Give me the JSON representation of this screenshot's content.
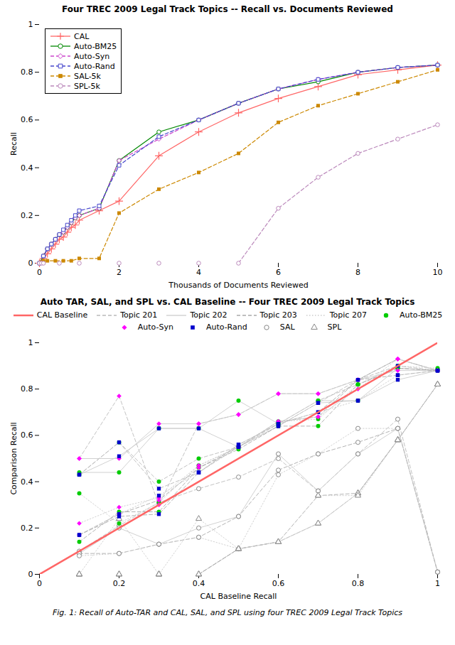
{
  "chart_data": [
    {
      "type": "line",
      "title": "Four TREC 2009 Legal Track Topics -- Recall vs. Documents Reviewed",
      "xlabel": "Thousands of Documents Reviewed",
      "ylabel": "Recall",
      "xlim": [
        0,
        10
      ],
      "xticks": [
        0,
        2,
        4,
        6,
        8,
        10
      ],
      "ylim": [
        0,
        1
      ],
      "yticks": [
        0,
        0.2,
        0.4,
        0.6,
        0.8,
        1
      ],
      "grid": false,
      "legend": "upper left",
      "series": [
        {
          "name": "CAL",
          "color": "#ff6666",
          "line_style": "solid",
          "marker": "plus",
          "x": [
            0.0,
            0.1,
            0.2,
            0.3,
            0.4,
            0.5,
            0.6,
            0.7,
            0.8,
            0.9,
            1.0,
            1.5,
            2.0,
            3.0,
            4.0,
            5.0,
            6.0,
            7.0,
            8.0,
            9.0,
            10.0
          ],
          "values": [
            0.0,
            0.02,
            0.04,
            0.06,
            0.08,
            0.1,
            0.11,
            0.13,
            0.15,
            0.16,
            0.18,
            0.22,
            0.26,
            0.45,
            0.55,
            0.63,
            0.69,
            0.74,
            0.79,
            0.81,
            0.83
          ]
        },
        {
          "name": "Auto-BM25",
          "color": "#008800",
          "line_style": "solid",
          "marker": "open circle",
          "x": [
            0.0,
            0.1,
            0.2,
            0.3,
            0.4,
            0.5,
            0.6,
            0.7,
            0.8,
            0.9,
            1.0,
            1.5,
            2.0,
            3.0,
            4.0,
            5.0,
            6.0,
            7.0,
            8.0,
            9.0,
            10.0
          ],
          "values": [
            0.0,
            0.03,
            0.06,
            0.08,
            0.1,
            0.12,
            0.13,
            0.15,
            0.17,
            0.19,
            0.2,
            0.23,
            0.43,
            0.55,
            0.6,
            0.67,
            0.73,
            0.76,
            0.8,
            0.82,
            0.83
          ]
        },
        {
          "name": "Auto-Syn",
          "color": "#cc44cc",
          "line_style": "dashed",
          "marker": "open diamond",
          "x": [
            0.0,
            0.1,
            0.2,
            0.3,
            0.4,
            0.5,
            0.6,
            0.7,
            0.8,
            0.9,
            1.0,
            1.5,
            2.0,
            3.0,
            4.0,
            5.0,
            6.0,
            7.0,
            8.0,
            9.0,
            10.0
          ],
          "values": [
            0.0,
            0.03,
            0.06,
            0.08,
            0.1,
            0.12,
            0.13,
            0.15,
            0.17,
            0.19,
            0.2,
            0.23,
            0.43,
            0.52,
            0.6,
            0.67,
            0.73,
            0.77,
            0.8,
            0.82,
            0.83
          ]
        },
        {
          "name": "Auto-Rand",
          "color": "#4444cc",
          "line_style": "dashed",
          "marker": "open square",
          "x": [
            0.0,
            0.1,
            0.2,
            0.3,
            0.4,
            0.5,
            0.6,
            0.7,
            0.8,
            0.9,
            1.0,
            1.5,
            2.0,
            3.0,
            4.0,
            5.0,
            6.0,
            7.0,
            8.0,
            9.0,
            10.0
          ],
          "values": [
            0.0,
            0.03,
            0.06,
            0.08,
            0.1,
            0.12,
            0.14,
            0.16,
            0.18,
            0.2,
            0.22,
            0.24,
            0.41,
            0.53,
            0.6,
            0.67,
            0.73,
            0.77,
            0.8,
            0.82,
            0.83
          ]
        },
        {
          "name": "SAL-5k",
          "color": "#cc8800",
          "line_style": "dashed",
          "marker": "square",
          "x": [
            0.0,
            0.05,
            0.1,
            0.2,
            0.4,
            0.6,
            0.8,
            1.0,
            1.5,
            2.0,
            3.0,
            4.0,
            5.0,
            6.0,
            7.0,
            8.0,
            9.0,
            10.0
          ],
          "values": [
            0.0,
            0.005,
            0.01,
            0.01,
            0.01,
            0.01,
            0.01,
            0.02,
            0.02,
            0.21,
            0.31,
            0.38,
            0.46,
            0.59,
            0.66,
            0.71,
            0.76,
            0.81
          ]
        },
        {
          "name": "SPL-5k",
          "color": "#bb88bb",
          "line_style": "dashed",
          "marker": "open circle",
          "x": [
            0.0,
            0.05,
            0.1,
            0.5,
            1.0,
            2.0,
            3.0,
            4.0,
            5.0,
            6.0,
            7.0,
            8.0,
            9.0,
            10.0
          ],
          "values": [
            0.0,
            0.0,
            0.0,
            0.0,
            0.0,
            0.0,
            0.0,
            0.0,
            0.0,
            0.23,
            0.36,
            0.46,
            0.52,
            0.58
          ]
        }
      ]
    },
    {
      "type": "scatter",
      "title": "Auto TAR, SAL, and SPL vs. CAL Baseline -- Four TREC 2009 Legal Track Topics",
      "xlabel": "CAL Baseline Recall",
      "ylabel": "Comparison Recall",
      "caption": "Fig. 1: Recall of Auto-TAR and CAL, SAL, and SPL using four TREC 2009 Legal Track Topics",
      "xlim": [
        0,
        1
      ],
      "xticks": [
        0,
        0.2,
        0.4,
        0.6,
        0.8,
        1
      ],
      "ylim": [
        0,
        1
      ],
      "yticks": [
        0,
        0.2,
        0.4,
        0.6,
        0.8,
        1
      ],
      "grid": false,
      "legend": "top",
      "x": [
        0.1,
        0.2,
        0.3,
        0.4,
        0.5,
        0.6,
        0.7,
        0.8,
        0.9,
        1.0
      ],
      "topics": [
        {
          "name": "Topic 201",
          "color": "#bbbbbb",
          "line_style": "dashed"
        },
        {
          "name": "Topic 202",
          "color": "#cccccc",
          "line_style": "solid"
        },
        {
          "name": "Topic 203",
          "color": "#aaaaaa",
          "line_style": "dashed"
        },
        {
          "name": "Topic 207",
          "color": "#cccccc",
          "line_style": "dotted"
        }
      ],
      "series": [
        {
          "name": "CAL Baseline",
          "type": "line",
          "color": "#ff6666",
          "line_style": "solid",
          "x": [
            0,
            1
          ],
          "values": [
            0,
            1
          ]
        },
        {
          "name": "Auto-BM25",
          "type": "scatter",
          "color": "#00cc00",
          "marker": "circle",
          "values": [
            [
              0.43,
              0.57,
              0.4,
              0.5,
              0.55,
              0.65,
              0.75,
              0.82,
              0.89,
              0.88
            ],
            [
              0.44,
              0.44,
              0.63,
              0.63,
              0.75,
              0.65,
              0.75,
              0.75,
              0.89,
              0.88
            ],
            [
              0.14,
              0.27,
              0.27,
              0.46,
              0.54,
              0.64,
              0.64,
              0.82,
              0.89,
              0.88
            ],
            [
              0.35,
              0.22,
              0.31,
              0.47,
              0.55,
              0.66,
              0.67,
              0.82,
              0.9,
              0.89
            ]
          ]
        },
        {
          "name": "Auto-Syn",
          "type": "scatter",
          "color": "#ff00ff",
          "marker": "diamond",
          "values": [
            [
              0.5,
              0.77,
              0.3,
              0.65,
              0.69,
              0.78,
              0.78,
              0.84,
              0.93,
              0.88
            ],
            [
              0.5,
              0.5,
              0.65,
              0.65,
              0.69,
              0.78,
              0.78,
              0.84,
              0.88,
              0.88
            ],
            [
              0.17,
              0.26,
              0.32,
              0.46,
              0.55,
              0.66,
              0.68,
              0.84,
              0.93,
              0.88
            ],
            [
              0.22,
              0.29,
              0.33,
              0.47,
              0.55,
              0.66,
              0.68,
              0.8,
              0.93,
              0.88
            ]
          ]
        },
        {
          "name": "Auto-Rand",
          "type": "scatter",
          "color": "#0000cc",
          "marker": "square",
          "values": [
            [
              0.43,
              0.57,
              0.37,
              0.44,
              0.55,
              0.64,
              0.74,
              0.84,
              0.9,
              0.88
            ],
            [
              0.43,
              0.51,
              0.63,
              0.63,
              0.55,
              0.64,
              0.74,
              0.75,
              0.84,
              0.88
            ],
            [
              0.17,
              0.25,
              0.26,
              0.44,
              0.56,
              0.65,
              0.7,
              0.84,
              0.86,
              0.88
            ],
            [
              0.17,
              0.26,
              0.34,
              0.44,
              0.56,
              0.65,
              0.7,
              0.75,
              0.86,
              0.88
            ]
          ]
        },
        {
          "name": "SAL",
          "type": "scatter",
          "color": "#888888",
          "marker": "open circle",
          "values": [
            [
              0.1,
              0.21,
              0.31,
              0.37,
              0.42,
              0.5,
              0.36,
              0.52,
              0.67,
              0.01
            ],
            [
              0.09,
              0.2,
              0.13,
              0.2,
              0.25,
              0.52,
              0.36,
              0.52,
              0.63,
              0.01
            ],
            [
              0.09,
              0.09,
              0.13,
              0.16,
              0.25,
              0.45,
              0.52,
              0.57,
              0.63,
              0.01
            ],
            [
              0.08,
              0.09,
              0.13,
              0.16,
              0.11,
              0.43,
              0.52,
              0.63,
              0.63,
              0.01
            ]
          ]
        },
        {
          "name": "SPL",
          "type": "scatter",
          "color": "#888888",
          "marker": "open triangle",
          "values": [
            [
              0.0,
              0.0,
              0.0,
              0.0,
              0.11,
              0.14,
              0.22,
              0.35,
              0.58,
              0.82
            ],
            [
              0.0,
              0.0,
              0.0,
              0.0,
              0.11,
              0.14,
              0.22,
              0.35,
              0.58,
              0.82
            ],
            [
              0.0,
              0.0,
              0.0,
              0.0,
              0.11,
              0.14,
              0.34,
              0.35,
              0.58,
              0.82
            ],
            [
              0.0,
              0.24,
              0.0,
              0.24,
              0.11,
              0.14,
              0.34,
              0.34,
              0.58,
              0.82
            ]
          ]
        }
      ]
    }
  ]
}
